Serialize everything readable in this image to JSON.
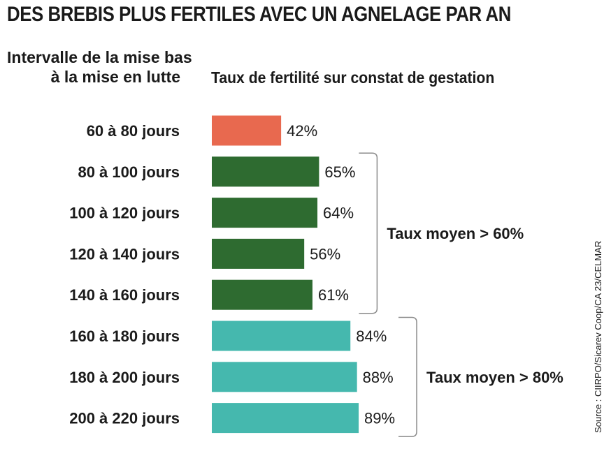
{
  "title": "DES BREBIS PLUS FERTILES AVEC UN AGNELAGE PAR AN",
  "left_header_line1": "Intervalle de la mise bas",
  "left_header_line2": "à la mise en lutte",
  "right_header": "Taux de fertilité sur constat de gestation",
  "source": "Source : CIIRPO/Sicarev Coop/CA 23/CELMAR",
  "colors": {
    "low": "#e8694f",
    "mid": "#2e6b30",
    "high": "#45b8ae"
  },
  "chart_data": {
    "type": "bar",
    "orientation": "horizontal",
    "categories": [
      "60 à 80 jours",
      "80 à 100 jours",
      "100 à 120 jours",
      "120 à 140 jours",
      "140 à 160 jours",
      "160 à 180 jours",
      "180 à 200 jours",
      "200 à 220 jours"
    ],
    "values": [
      42,
      65,
      64,
      56,
      61,
      84,
      88,
      89
    ],
    "value_labels": [
      "42%",
      "65%",
      "64%",
      "56%",
      "61%",
      "84%",
      "88%",
      "89%"
    ],
    "unit": "%",
    "groups": [
      {
        "label": "Taux moyen > 60%",
        "from": 1,
        "to": 4
      },
      {
        "label": "Taux moyen > 80%",
        "from": 5,
        "to": 7
      }
    ]
  }
}
